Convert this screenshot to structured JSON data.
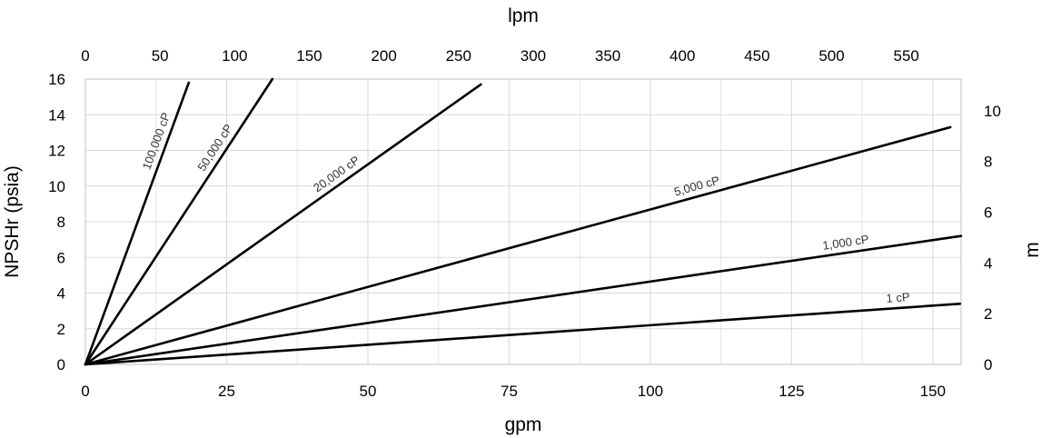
{
  "chart_data": {
    "type": "line",
    "xlabel": "gpm",
    "ylabel": "NPSHr (psia)",
    "x2label": "lpm",
    "y2label": "m",
    "xlim": [
      0,
      155
    ],
    "ylim": [
      0,
      16
    ],
    "x2lim": [
      0,
      586.7
    ],
    "y2lim": [
      0,
      11.25
    ],
    "x_ticks": [
      "0",
      "25",
      "50",
      "75",
      "100",
      "125",
      "150"
    ],
    "y_ticks": [
      "0",
      "2",
      "4",
      "6",
      "8",
      "10",
      "12",
      "14",
      "16"
    ],
    "x2_ticks": [
      "0",
      "50",
      "100",
      "150",
      "200",
      "250",
      "300",
      "350",
      "400",
      "450",
      "500",
      "550"
    ],
    "y2_ticks": [
      "0",
      "2",
      "4",
      "6",
      "8",
      "10"
    ],
    "grid": true,
    "series": [
      {
        "name": "100,000 cP",
        "x": [
          0,
          18.3
        ],
        "y": [
          0,
          15.8
        ]
      },
      {
        "name": "50,000 cP",
        "x": [
          0,
          33.1
        ],
        "y": [
          0,
          16.0
        ]
      },
      {
        "name": "20,000 cP",
        "x": [
          0,
          70.0
        ],
        "y": [
          0,
          15.7
        ]
      },
      {
        "name": "5,000 cP",
        "x": [
          0,
          153.1
        ],
        "y": [
          0,
          13.3
        ]
      },
      {
        "name": "1,000 cP",
        "x": [
          0,
          155.0
        ],
        "y": [
          0,
          7.2
        ]
      },
      {
        "name": "1 cP",
        "x": [
          0,
          154.8
        ],
        "y": [
          0,
          3.4
        ]
      }
    ]
  }
}
